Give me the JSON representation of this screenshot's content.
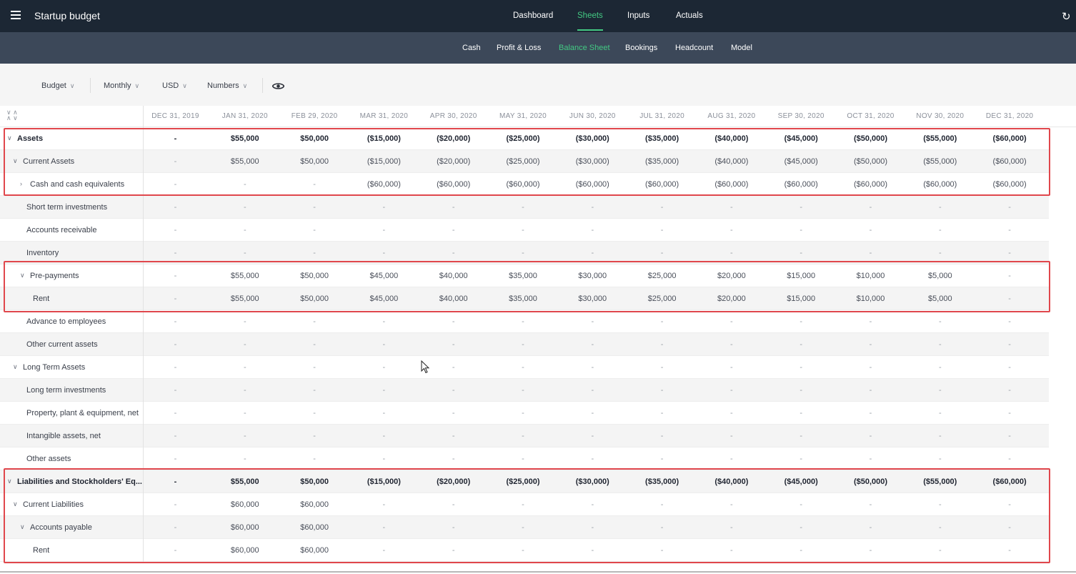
{
  "app": {
    "title": "Startup budget"
  },
  "topnav": {
    "tabs": [
      "Dashboard",
      "Sheets",
      "Inputs",
      "Actuals"
    ],
    "active": "Sheets"
  },
  "subnav": {
    "tabs": [
      "Cash",
      "Profit & Loss",
      "Balance Sheet",
      "Bookings",
      "Headcount",
      "Model"
    ],
    "active": "Balance Sheet"
  },
  "toolbar": {
    "scenario": "Budget",
    "period": "Monthly",
    "currency": "USD",
    "format": "Numbers"
  },
  "columns": [
    "DEC 31, 2019",
    "JAN 31, 2020",
    "FEB 29, 2020",
    "MAR 31, 2020",
    "APR 30, 2020",
    "MAY 31, 2020",
    "JUN 30, 2020",
    "JUL 31, 2020",
    "AUG 31, 2020",
    "SEP 30, 2020",
    "OCT 31, 2020",
    "NOV 30, 2020",
    "DEC 31, 2020"
  ],
  "colors": {
    "accent": "#43c983",
    "topbar": "#1c2734",
    "subbar": "#3c4859",
    "highlight": "#e0474c"
  },
  "rows": [
    {
      "label": "Assets",
      "level": 0,
      "caret": "down",
      "bold": true,
      "values": [
        "-",
        "$55,000",
        "$50,000",
        "($15,000)",
        "($20,000)",
        "($25,000)",
        "($30,000)",
        "($35,000)",
        "($40,000)",
        "($45,000)",
        "($50,000)",
        "($55,000)",
        "($60,000)"
      ]
    },
    {
      "label": "Current Assets",
      "level": 1,
      "caret": "down",
      "values": [
        "-",
        "$55,000",
        "$50,000",
        "($15,000)",
        "($20,000)",
        "($25,000)",
        "($30,000)",
        "($35,000)",
        "($40,000)",
        "($45,000)",
        "($50,000)",
        "($55,000)",
        "($60,000)"
      ]
    },
    {
      "label": "Cash and cash equivalents",
      "level": 2,
      "caret": "right",
      "values": [
        "-",
        "-",
        "-",
        "($60,000)",
        "($60,000)",
        "($60,000)",
        "($60,000)",
        "($60,000)",
        "($60,000)",
        "($60,000)",
        "($60,000)",
        "($60,000)",
        "($60,000)"
      ]
    },
    {
      "label": "Short term investments",
      "level": 3,
      "values": [
        "-",
        "-",
        "-",
        "-",
        "-",
        "-",
        "-",
        "-",
        "-",
        "-",
        "-",
        "-",
        "-"
      ]
    },
    {
      "label": "Accounts receivable",
      "level": 3,
      "values": [
        "-",
        "-",
        "-",
        "-",
        "-",
        "-",
        "-",
        "-",
        "-",
        "-",
        "-",
        "-",
        "-"
      ]
    },
    {
      "label": "Inventory",
      "level": 3,
      "values": [
        "-",
        "-",
        "-",
        "-",
        "-",
        "-",
        "-",
        "-",
        "-",
        "-",
        "-",
        "-",
        "-"
      ]
    },
    {
      "label": "Pre-payments",
      "level": 2,
      "caret": "down",
      "values": [
        "-",
        "$55,000",
        "$50,000",
        "$45,000",
        "$40,000",
        "$35,000",
        "$30,000",
        "$25,000",
        "$20,000",
        "$15,000",
        "$10,000",
        "$5,000",
        "-"
      ]
    },
    {
      "label": "Rent",
      "level": 4,
      "values": [
        "-",
        "$55,000",
        "$50,000",
        "$45,000",
        "$40,000",
        "$35,000",
        "$30,000",
        "$25,000",
        "$20,000",
        "$15,000",
        "$10,000",
        "$5,000",
        "-"
      ]
    },
    {
      "label": "Advance to employees",
      "level": 3,
      "values": [
        "-",
        "-",
        "-",
        "-",
        "-",
        "-",
        "-",
        "-",
        "-",
        "-",
        "-",
        "-",
        "-"
      ]
    },
    {
      "label": "Other current assets",
      "level": 3,
      "values": [
        "-",
        "-",
        "-",
        "-",
        "-",
        "-",
        "-",
        "-",
        "-",
        "-",
        "-",
        "-",
        "-"
      ]
    },
    {
      "label": "Long Term Assets",
      "level": 1,
      "caret": "down",
      "values": [
        "-",
        "-",
        "-",
        "-",
        "-",
        "-",
        "-",
        "-",
        "-",
        "-",
        "-",
        "-",
        "-"
      ]
    },
    {
      "label": "Long term investments",
      "level": 3,
      "values": [
        "-",
        "-",
        "-",
        "-",
        "-",
        "-",
        "-",
        "-",
        "-",
        "-",
        "-",
        "-",
        "-"
      ]
    },
    {
      "label": "Property, plant & equipment, net",
      "level": 3,
      "values": [
        "-",
        "-",
        "-",
        "-",
        "-",
        "-",
        "-",
        "-",
        "-",
        "-",
        "-",
        "-",
        "-"
      ]
    },
    {
      "label": "Intangible assets, net",
      "level": 3,
      "values": [
        "-",
        "-",
        "-",
        "-",
        "-",
        "-",
        "-",
        "-",
        "-",
        "-",
        "-",
        "-",
        "-"
      ]
    },
    {
      "label": "Other assets",
      "level": 3,
      "values": [
        "-",
        "-",
        "-",
        "-",
        "-",
        "-",
        "-",
        "-",
        "-",
        "-",
        "-",
        "-",
        "-"
      ]
    },
    {
      "label": "Liabilities and Stockholders' Eq...",
      "level": 0,
      "caret": "down",
      "bold": true,
      "values": [
        "-",
        "$55,000",
        "$50,000",
        "($15,000)",
        "($20,000)",
        "($25,000)",
        "($30,000)",
        "($35,000)",
        "($40,000)",
        "($45,000)",
        "($50,000)",
        "($55,000)",
        "($60,000)"
      ]
    },
    {
      "label": "Current Liabilities",
      "level": 1,
      "caret": "down",
      "values": [
        "-",
        "$60,000",
        "$60,000",
        "-",
        "-",
        "-",
        "-",
        "-",
        "-",
        "-",
        "-",
        "-",
        "-"
      ]
    },
    {
      "label": "Accounts payable",
      "level": 2,
      "caret": "down",
      "values": [
        "-",
        "$60,000",
        "$60,000",
        "-",
        "-",
        "-",
        "-",
        "-",
        "-",
        "-",
        "-",
        "-",
        "-"
      ]
    },
    {
      "label": "Rent",
      "level": 4,
      "values": [
        "-",
        "$60,000",
        "$60,000",
        "-",
        "-",
        "-",
        "-",
        "-",
        "-",
        "-",
        "-",
        "-",
        "-"
      ]
    }
  ]
}
